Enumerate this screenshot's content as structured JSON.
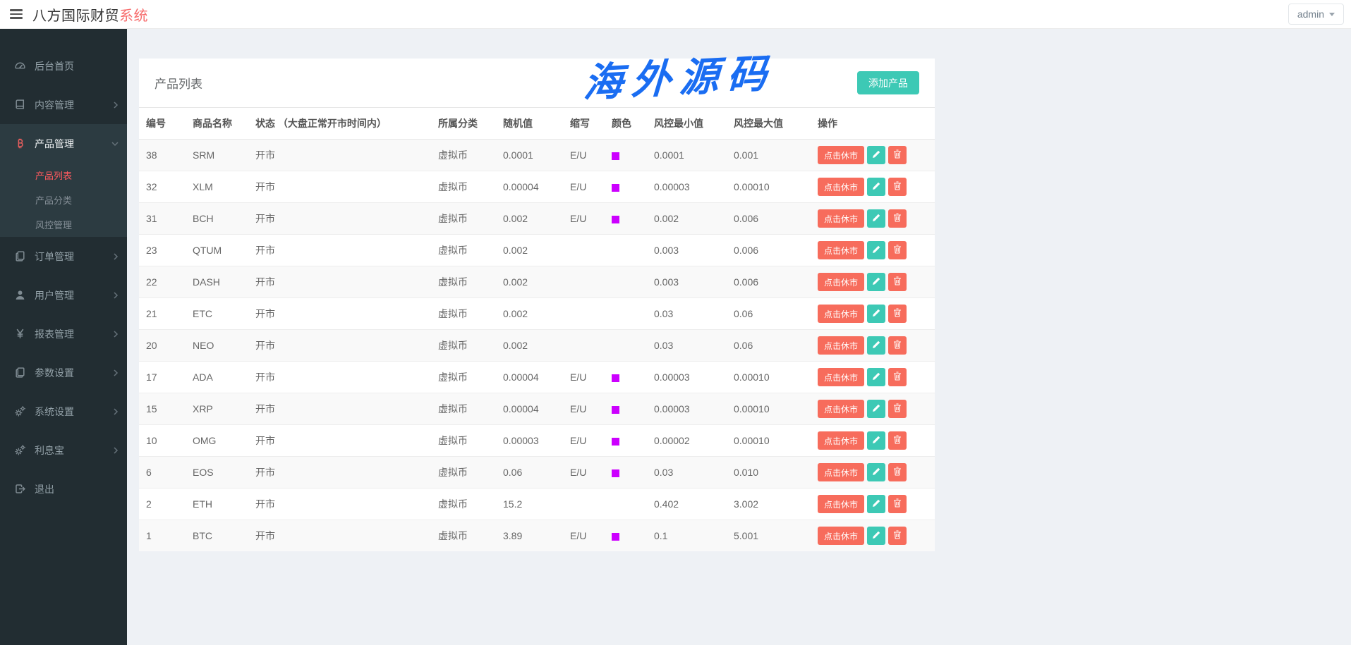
{
  "header": {
    "brand": "八方国际财贸",
    "brand_accent": "系统",
    "user_menu": "admin"
  },
  "sidebar": {
    "items": [
      {
        "label": "后台首页",
        "icon": "dashboard-icon",
        "expandable": false
      },
      {
        "label": "内容管理",
        "icon": "book-icon",
        "expandable": true
      },
      {
        "label": "产品管理",
        "icon": "bitcoin-icon",
        "expandable": true,
        "active": true,
        "children": [
          {
            "label": "产品列表",
            "active": true
          },
          {
            "label": "产品分类",
            "active": false
          },
          {
            "label": "风控管理",
            "active": false
          }
        ]
      },
      {
        "label": "订单管理",
        "icon": "documents-icon",
        "expandable": true
      },
      {
        "label": "用户管理",
        "icon": "user-icon",
        "expandable": true
      },
      {
        "label": "报表管理",
        "icon": "yen-icon",
        "expandable": true
      },
      {
        "label": "参数设置",
        "icon": "documents-icon",
        "expandable": true
      },
      {
        "label": "系统设置",
        "icon": "gears-icon",
        "expandable": true
      },
      {
        "label": "利息宝",
        "icon": "gears-icon",
        "expandable": true
      },
      {
        "label": "退出",
        "icon": "logout-icon",
        "expandable": false
      }
    ]
  },
  "main": {
    "card_title": "产品列表",
    "watermark": "海外源码",
    "add_button": "添加产品",
    "table": {
      "columns": [
        "编号",
        "商品名称",
        "状态 （大盘正常开市时间内）",
        "所属分类",
        "随机值",
        "缩写",
        "颜色",
        "风控最小值",
        "风控最大值",
        "操作"
      ],
      "close_market_label": "点击休市",
      "rows": [
        {
          "id": "38",
          "name": "SRM",
          "status": "开市",
          "category": "虚拟币",
          "random": "0.0001",
          "abbr": "E/U",
          "color": "#cc00ff",
          "min": "0.0001",
          "max": "0.001"
        },
        {
          "id": "32",
          "name": "XLM",
          "status": "开市",
          "category": "虚拟币",
          "random": "0.00004",
          "abbr": "E/U",
          "color": "#cc00ff",
          "min": "0.00003",
          "max": "0.00010"
        },
        {
          "id": "31",
          "name": "BCH",
          "status": "开市",
          "category": "虚拟币",
          "random": "0.002",
          "abbr": "E/U",
          "color": "#cc00ff",
          "min": "0.002",
          "max": "0.006"
        },
        {
          "id": "23",
          "name": "QTUM",
          "status": "开市",
          "category": "虚拟币",
          "random": "0.002",
          "abbr": "",
          "color": null,
          "min": "0.003",
          "max": "0.006"
        },
        {
          "id": "22",
          "name": "DASH",
          "status": "开市",
          "category": "虚拟币",
          "random": "0.002",
          "abbr": "",
          "color": null,
          "min": "0.003",
          "max": "0.006"
        },
        {
          "id": "21",
          "name": "ETC",
          "status": "开市",
          "category": "虚拟币",
          "random": "0.002",
          "abbr": "",
          "color": null,
          "min": "0.03",
          "max": "0.06"
        },
        {
          "id": "20",
          "name": "NEO",
          "status": "开市",
          "category": "虚拟币",
          "random": "0.002",
          "abbr": "",
          "color": null,
          "min": "0.03",
          "max": "0.06"
        },
        {
          "id": "17",
          "name": "ADA",
          "status": "开市",
          "category": "虚拟币",
          "random": "0.00004",
          "abbr": "E/U",
          "color": "#cc00ff",
          "min": "0.00003",
          "max": "0.00010"
        },
        {
          "id": "15",
          "name": "XRP",
          "status": "开市",
          "category": "虚拟币",
          "random": "0.00004",
          "abbr": "E/U",
          "color": "#cc00ff",
          "min": "0.00003",
          "max": "0.00010"
        },
        {
          "id": "10",
          "name": "OMG",
          "status": "开市",
          "category": "虚拟币",
          "random": "0.00003",
          "abbr": "E/U",
          "color": "#cc00ff",
          "min": "0.00002",
          "max": "0.00010"
        },
        {
          "id": "6",
          "name": "EOS",
          "status": "开市",
          "category": "虚拟币",
          "random": "0.06",
          "abbr": "E/U",
          "color": "#cc00ff",
          "min": "0.03",
          "max": "0.010"
        },
        {
          "id": "2",
          "name": "ETH",
          "status": "开市",
          "category": "虚拟币",
          "random": "15.2",
          "abbr": "",
          "color": null,
          "min": "0.402",
          "max": "3.002"
        },
        {
          "id": "1",
          "name": "BTC",
          "status": "开市",
          "category": "虚拟币",
          "random": "3.89",
          "abbr": "E/U",
          "color": "#cc00ff",
          "min": "0.1",
          "max": "5.001"
        }
      ]
    }
  },
  "colors": {
    "accent_teal": "#3dc9b5",
    "accent_red": "#f76c5c",
    "brand_accent_red": "#f76c6c",
    "active_link_red": "#ff5a5f",
    "color_swatch_magenta": "#cc00ff",
    "watermark_blue": "#1a6df2",
    "sidebar_bg": "#222d32",
    "sidebar_active_bg": "#2c3b41"
  }
}
